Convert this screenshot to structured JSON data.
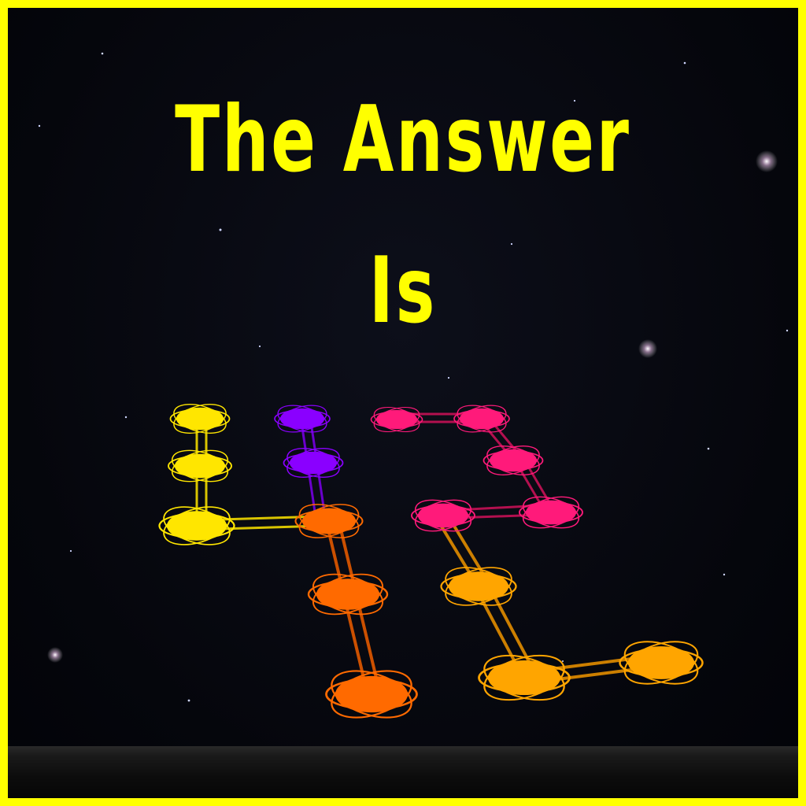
{
  "title": {
    "line1": "The Answer",
    "line2": "Is"
  },
  "answer_glyphs": "42",
  "colors": {
    "border": "#ffff00",
    "title": "#ffff00",
    "yellow": "#ffe600",
    "purple": "#8a00ff",
    "orange_dark": "#ff6a00",
    "pink": "#ff1a7a",
    "orange_light": "#ffa500"
  },
  "icons": {
    "planet_node": "ringed-planet-icon",
    "star": "star-sparkle-icon"
  }
}
